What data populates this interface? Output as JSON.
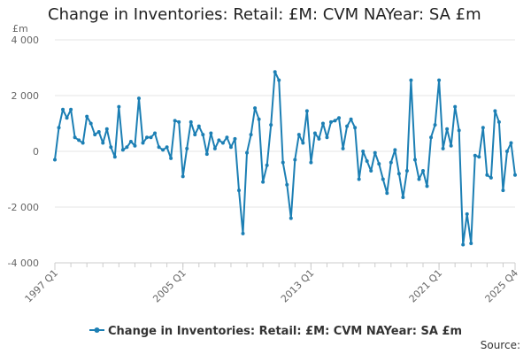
{
  "chart_data": {
    "type": "line",
    "title": "Change in Inventories: Retail: £M: CVM NAYear: SA £m",
    "unit_label": "£m",
    "ylim": [
      -4000,
      4000
    ],
    "y_ticks": [
      4000,
      2000,
      0,
      -2000,
      -4000
    ],
    "y_tick_labels": [
      "4 000",
      "2 000",
      "0",
      "-2 000",
      "-4 000"
    ],
    "x_tick_labels": [
      "1997 Q1",
      "2005 Q1",
      "2013 Q1",
      "2021 Q1",
      "2025 Q4"
    ],
    "x_tick_positions": [
      0,
      32,
      64,
      96,
      115
    ],
    "grid": "horizontal",
    "legend_position": "bottom",
    "series": [
      {
        "name": "Change in Inventories: Retail: £M: CVM NAYear: SA £m",
        "color": "#1c7fb4",
        "x": [
          "1997 Q1",
          "1997 Q2",
          "1997 Q3",
          "1997 Q4",
          "1998 Q1",
          "1998 Q2",
          "1998 Q3",
          "1998 Q4",
          "1999 Q1",
          "1999 Q2",
          "1999 Q3",
          "1999 Q4",
          "2000 Q1",
          "2000 Q2",
          "2000 Q3",
          "2000 Q4",
          "2001 Q1",
          "2001 Q2",
          "2001 Q3",
          "2001 Q4",
          "2002 Q1",
          "2002 Q2",
          "2002 Q3",
          "2002 Q4",
          "2003 Q1",
          "2003 Q2",
          "2003 Q3",
          "2003 Q4",
          "2004 Q1",
          "2004 Q2",
          "2004 Q3",
          "2004 Q4",
          "2005 Q1",
          "2005 Q2",
          "2005 Q3",
          "2005 Q4",
          "2006 Q1",
          "2006 Q2",
          "2006 Q3",
          "2006 Q4",
          "2007 Q1",
          "2007 Q2",
          "2007 Q3",
          "2007 Q4",
          "2008 Q1",
          "2008 Q2",
          "2008 Q3",
          "2008 Q4",
          "2009 Q1",
          "2009 Q2",
          "2009 Q3",
          "2009 Q4",
          "2010 Q1",
          "2010 Q2",
          "2010 Q3",
          "2010 Q4",
          "2011 Q1",
          "2011 Q2",
          "2011 Q3",
          "2011 Q4",
          "2012 Q1",
          "2012 Q2",
          "2012 Q3",
          "2012 Q4",
          "2013 Q1",
          "2013 Q2",
          "2013 Q3",
          "2013 Q4",
          "2014 Q1",
          "2014 Q2",
          "2014 Q3",
          "2014 Q4",
          "2015 Q1",
          "2015 Q2",
          "2015 Q3",
          "2015 Q4",
          "2016 Q1",
          "2016 Q2",
          "2016 Q3",
          "2016 Q4",
          "2017 Q1",
          "2017 Q2",
          "2017 Q3",
          "2017 Q4",
          "2018 Q1",
          "2018 Q2",
          "2018 Q3",
          "2018 Q4",
          "2019 Q1",
          "2019 Q2",
          "2019 Q3",
          "2019 Q4",
          "2020 Q1",
          "2020 Q2",
          "2020 Q3",
          "2020 Q4",
          "2021 Q1",
          "2021 Q2",
          "2021 Q3",
          "2021 Q4",
          "2022 Q1",
          "2022 Q2",
          "2022 Q3",
          "2022 Q4",
          "2023 Q1",
          "2023 Q2",
          "2023 Q3",
          "2023 Q4",
          "2024 Q1",
          "2024 Q2",
          "2024 Q3",
          "2024 Q4",
          "2025 Q1",
          "2025 Q2",
          "2025 Q3",
          "2025 Q4"
        ],
        "values": [
          -300,
          850,
          1500,
          1200,
          1500,
          500,
          400,
          300,
          1250,
          1000,
          600,
          700,
          300,
          800,
          150,
          -200,
          1600,
          50,
          150,
          350,
          200,
          1900,
          300,
          500,
          500,
          650,
          150,
          50,
          150,
          -250,
          1100,
          1050,
          -900,
          100,
          1050,
          600,
          900,
          600,
          -100,
          650,
          100,
          400,
          300,
          500,
          150,
          450,
          -1400,
          -2950,
          -50,
          600,
          1550,
          1150,
          -1100,
          -500,
          950,
          2850,
          2550,
          -400,
          -1200,
          -2400,
          -300,
          600,
          300,
          1450,
          -400,
          650,
          450,
          1000,
          500,
          1050,
          1100,
          1200,
          100,
          900,
          1150,
          850,
          -1000,
          0,
          -350,
          -700,
          -50,
          -450,
          -1000,
          -1500,
          -400,
          50,
          -800,
          -1650,
          -700,
          2550,
          -300,
          -1000,
          -700,
          -1250,
          500,
          950,
          2550,
          100,
          800,
          200,
          1600,
          750,
          -3350,
          -2250,
          -3300,
          -150,
          -200,
          850,
          -850,
          -950,
          1450,
          1050,
          -1400,
          0,
          300,
          -850
        ]
      }
    ],
    "source_label": "Source:"
  }
}
